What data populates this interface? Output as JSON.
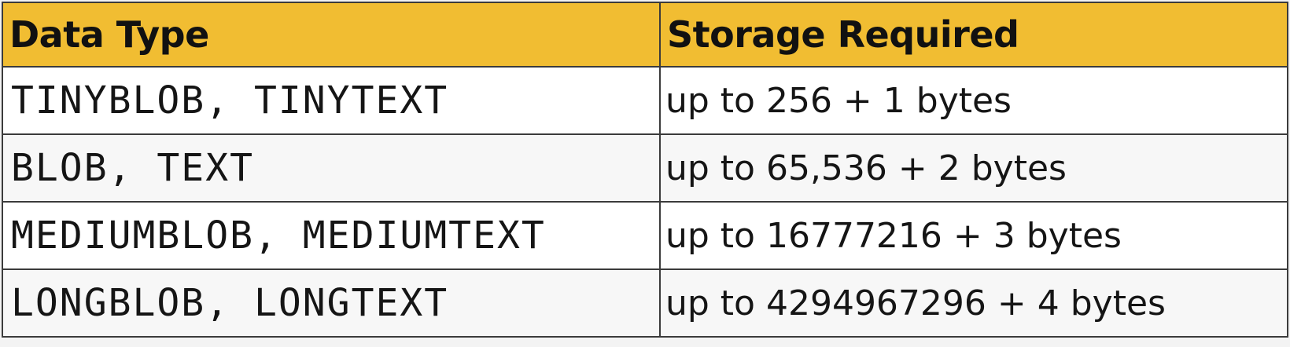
{
  "table": {
    "headers": [
      "Data Type",
      "Storage Required"
    ],
    "rows": [
      {
        "data_type": "TINYBLOB, TINYTEXT",
        "storage": "up to 256 + 1 bytes"
      },
      {
        "data_type": "BLOB, TEXT",
        "storage": "up to 65,536 + 2 bytes"
      },
      {
        "data_type": "MEDIUMBLOB, MEDIUMTEXT",
        "storage": "up to 16777216 + 3 bytes"
      },
      {
        "data_type": "LONGBLOB, LONGTEXT",
        "storage": "up to 4294967296 + 4 bytes"
      }
    ]
  },
  "colors": {
    "header_background": "#f1bd32",
    "border": "#3b3b3b",
    "text": "#151515"
  }
}
